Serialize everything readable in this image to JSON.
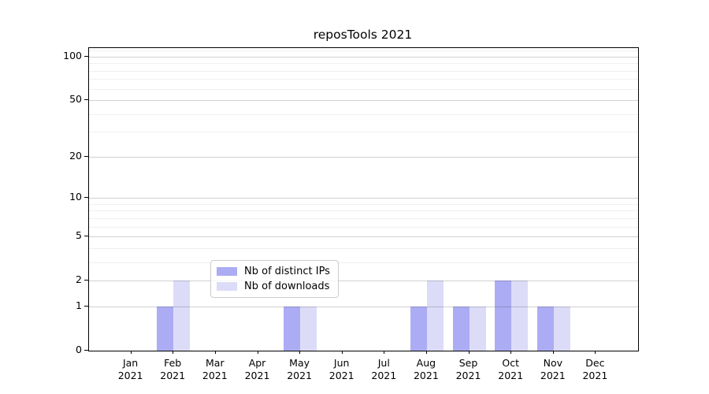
{
  "chart_data": {
    "type": "bar",
    "title": "reposTools 2021",
    "categories": [
      "Jan 2021",
      "Feb 2021",
      "Mar 2021",
      "Apr 2021",
      "May 2021",
      "Jun 2021",
      "Jul 2021",
      "Aug 2021",
      "Sep 2021",
      "Oct 2021",
      "Nov 2021",
      "Dec 2021"
    ],
    "series": [
      {
        "name": "Nb of distinct IPs",
        "color": "#acacf4",
        "values": [
          0,
          1,
          0,
          0,
          1,
          0,
          0,
          1,
          1,
          2,
          1,
          0
        ]
      },
      {
        "name": "Nb of downloads",
        "color": "#dcdcf8",
        "values": [
          0,
          2,
          0,
          0,
          1,
          0,
          0,
          2,
          1,
          2,
          1,
          0
        ]
      }
    ],
    "xlabel": "",
    "ylabel": "",
    "y_axis": {
      "scale": "log1p",
      "ticks": [
        0,
        1,
        2,
        5,
        10,
        20,
        50,
        100
      ],
      "minor_gridlines": [
        3,
        4,
        6,
        7,
        8,
        9,
        30,
        40,
        60,
        70,
        80,
        90,
        110
      ],
      "ylim": [
        0,
        115
      ]
    },
    "grid": {
      "major_color": "rgba(0,0,0,0.18)",
      "minor_color": "rgba(0,0,0,0.06)"
    },
    "legend": {
      "position": "lower-center",
      "background": "rgba(255,255,255,0.8)",
      "border_color": "#cccccc"
    }
  }
}
